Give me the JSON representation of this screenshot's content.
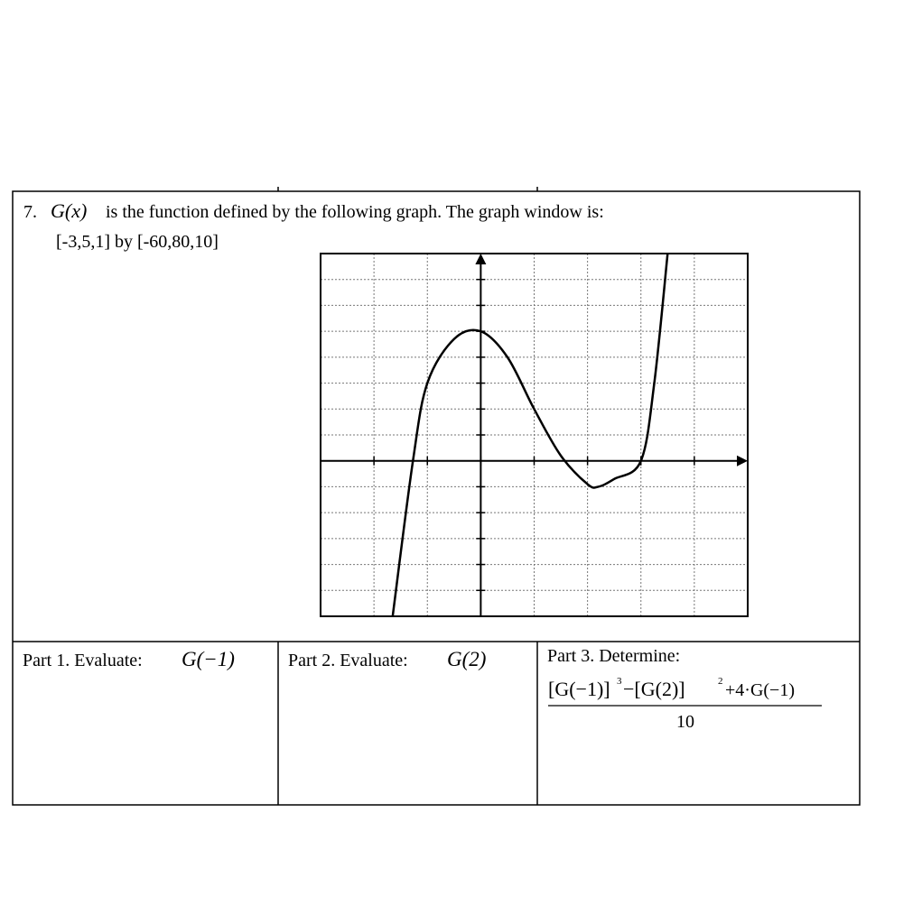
{
  "problem": {
    "number": "7.",
    "function_name": "G(x)",
    "statement": "is the function defined by the following graph.  The graph window is:",
    "window": "[-3,5,1] by [-60,80,10]"
  },
  "graph": {
    "type": "line",
    "xlim": [
      -3,
      5
    ],
    "ylim": [
      -60,
      80
    ],
    "xticks": [
      -3,
      -2,
      -1,
      0,
      1,
      2,
      3,
      4,
      5
    ],
    "yticks": [
      -60,
      -50,
      -40,
      -30,
      -20,
      -10,
      0,
      10,
      20,
      30,
      40,
      50,
      60,
      70,
      80
    ],
    "grid": true,
    "x": [
      -1.65,
      -1.27,
      -1,
      -0.5,
      0,
      0.5,
      1,
      1.5,
      2,
      2.2,
      2.5,
      3,
      3.25,
      3.5
    ],
    "values": [
      -60,
      0,
      30,
      47,
      50,
      40,
      20,
      2,
      -9,
      -10,
      -7,
      0,
      30,
      80
    ]
  },
  "parts": [
    {
      "label": "Part 1.  Evaluate:",
      "expression": "G(−1)"
    },
    {
      "label": "Part 2.  Evaluate:",
      "expression": "G(2)"
    },
    {
      "label": "Part 3.  Determine:",
      "numerator": [
        "[G(−1)]",
        "3",
        "−[G(2)]",
        "2",
        "+4·G(−1)"
      ],
      "denominator": "10"
    }
  ]
}
